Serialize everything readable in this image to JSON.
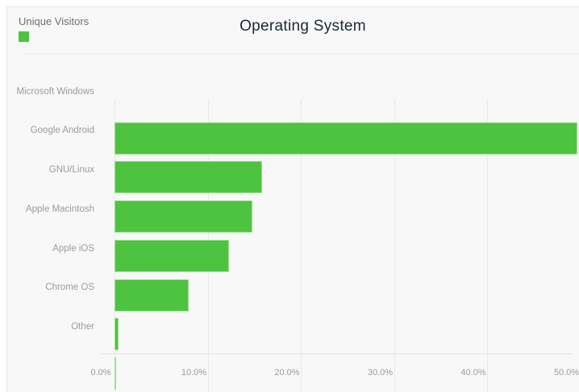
{
  "title": "Operating System",
  "legend": {
    "label": "Unique Visitors",
    "swatch_color": "#4dc340"
  },
  "colors": {
    "bar_fill": "#4dc340",
    "bar_border": "#9ce090",
    "card_background": "#f8f8f8",
    "card_border": "#e8e8e8",
    "gridline": "#e9e9e9",
    "title_text": "#1b2830",
    "label_text": "#9b9b9b",
    "legend_text": "#6e6e6e"
  },
  "chart_data": {
    "type": "bar",
    "orientation": "horizontal",
    "title": "Operating System",
    "legend_entries": [
      "Unique Visitors"
    ],
    "legend_position": "top-left",
    "categories": [
      "Microsoft Windows",
      "Google Android",
      "GNU/Linux",
      "Apple Macintosh",
      "Apple iOS",
      "Chrome OS",
      "Other"
    ],
    "series": [
      {
        "name": "Unique Visitors",
        "values": [
          49.7,
          15.8,
          14.8,
          12.3,
          8.0,
          0.4,
          0.1
        ]
      }
    ],
    "value_unit": "%",
    "xlabel": "",
    "ylabel": "",
    "xlim": [
      0,
      50
    ],
    "x_ticks": [
      "0.0%",
      "10.0%",
      "20.0%",
      "30.0%",
      "40.0%",
      "50.0%"
    ],
    "grid": "vertical"
  }
}
